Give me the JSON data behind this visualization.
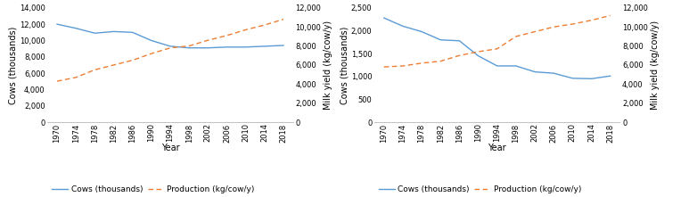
{
  "years": [
    1970,
    1974,
    1978,
    1982,
    1986,
    1990,
    1994,
    1998,
    2002,
    2006,
    2010,
    2014,
    2018
  ],
  "chart1": {
    "cows": [
      12000,
      11500,
      10900,
      11100,
      11000,
      10000,
      9300,
      9100,
      9100,
      9200,
      9200,
      9300,
      9400
    ],
    "production": [
      4300,
      4700,
      5500,
      6000,
      6500,
      7200,
      7800,
      8000,
      8600,
      9100,
      9700,
      10200,
      10800
    ],
    "left_ylim": [
      0,
      14000
    ],
    "right_ylim": [
      0,
      12000
    ],
    "left_yticks": [
      0,
      2000,
      4000,
      6000,
      8000,
      10000,
      12000,
      14000
    ],
    "right_yticks": [
      0,
      2000,
      4000,
      6000,
      8000,
      10000,
      12000
    ],
    "left_ylabel": "Cows (thousands)",
    "right_ylabel": "Milk yield (kg/cow/y)"
  },
  "chart2": {
    "cows": [
      2280,
      2100,
      1980,
      1800,
      1780,
      1450,
      1230,
      1230,
      1100,
      1070,
      960,
      950,
      1010
    ],
    "production": [
      5800,
      5900,
      6200,
      6400,
      7000,
      7400,
      7700,
      9000,
      9500,
      10000,
      10300,
      10700,
      11200
    ],
    "left_ylim": [
      0,
      2500
    ],
    "right_ylim": [
      0,
      12000
    ],
    "left_yticks": [
      0,
      500,
      1000,
      1500,
      2000,
      2500
    ],
    "right_yticks": [
      0,
      2000,
      4000,
      6000,
      8000,
      10000,
      12000
    ],
    "left_ylabel": "Cows (thousands)",
    "right_ylabel": "Milk yield (kg/cow/y)"
  },
  "cows_color": "#5b9bd5",
  "production_color": "#ed7d31",
  "xlabel": "Year",
  "legend_cows": "Cows (thousands)",
  "legend_prod": "Production (kg/cow/y)",
  "xtick_labels": [
    "1970",
    "1974",
    "1978",
    "1982",
    "1986",
    "1990",
    "1994",
    "1998",
    "2002",
    "2006",
    "2010",
    "2014",
    "2018"
  ],
  "tick_fontsize": 6,
  "label_fontsize": 7,
  "legend_fontsize": 6.5
}
